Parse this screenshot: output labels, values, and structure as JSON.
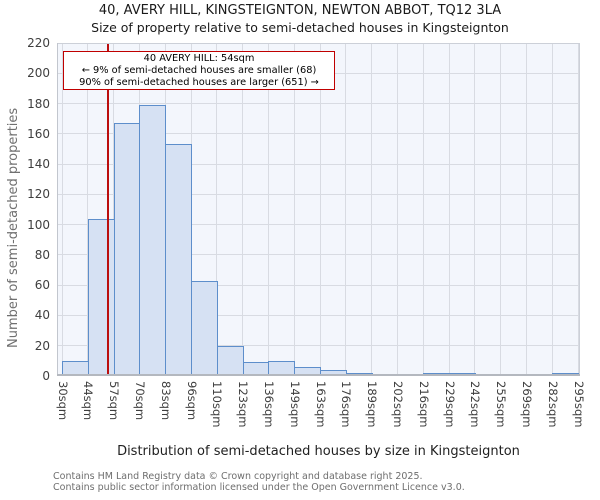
{
  "title": "40, AVERY HILL, KINGSTEIGNTON, NEWTON ABBOT, TQ12 3LA",
  "subtitle": "Size of property relative to semi-detached houses in Kingsteignton",
  "annotation": {
    "line1": "40 AVERY HILL: 54sqm",
    "line2": "← 9% of semi-detached houses are smaller (68)",
    "line3": "90% of semi-detached houses are larger (651) →"
  },
  "footer": {
    "line1": "Contains HM Land Registry data © Crown copyright and database right 2025.",
    "line2": "Contains public sector information licensed under the Open Government Licence v3.0."
  },
  "chart_data": {
    "type": "bar",
    "title": "40, AVERY HILL, KINGSTEIGNTON, NEWTON ABBOT, TQ12 3LA — Size of property relative to semi-detached houses in Kingsteignton",
    "xlabel": "Distribution of semi-detached houses by size in Kingsteignton",
    "ylabel": "Number of semi-detached properties",
    "xticks": [
      "30sqm",
      "44sqm",
      "57sqm",
      "70sqm",
      "83sqm",
      "96sqm",
      "110sqm",
      "123sqm",
      "136sqm",
      "149sqm",
      "163sqm",
      "176sqm",
      "189sqm",
      "202sqm",
      "216sqm",
      "229sqm",
      "242sqm",
      "255sqm",
      "269sqm",
      "282sqm",
      "295sqm"
    ],
    "bin_edges_sqm": [
      30,
      44,
      57,
      70,
      83,
      96,
      110,
      123,
      136,
      149,
      163,
      176,
      189,
      202,
      216,
      229,
      242,
      255,
      269,
      282,
      295
    ],
    "values": [
      10,
      104,
      167,
      179,
      153,
      63,
      20,
      9,
      10,
      6,
      4,
      2,
      0,
      0,
      2,
      2,
      0,
      0,
      0,
      2
    ],
    "yticks": [
      0,
      20,
      40,
      60,
      80,
      100,
      120,
      140,
      160,
      180,
      200,
      220
    ],
    "ylim": [
      0,
      220
    ],
    "grid": true,
    "legend": "none",
    "marker_sqm": 54,
    "marker_label": "40 AVERY HILL: 54sqm",
    "pct_smaller": "9%",
    "count_smaller": 68,
    "pct_larger": "90%",
    "count_larger": 651,
    "colors": {
      "bar_fill": "#d6e1f3",
      "bar_border": "#5d8ecb",
      "marker_line": "#bb0e0e",
      "annotation_border": "#c00000",
      "grid": "#d8dbe2",
      "plot_bg": "#f3f6fc"
    }
  }
}
